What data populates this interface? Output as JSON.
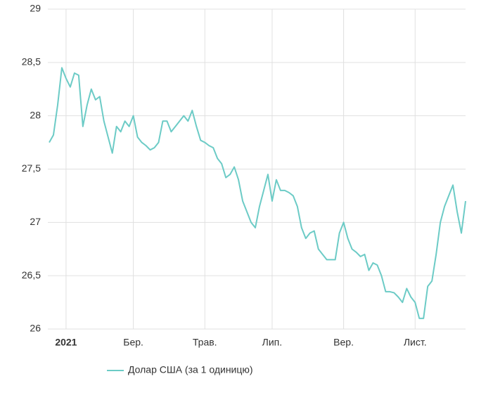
{
  "chart_data": {
    "type": "line",
    "categories": [
      null,
      null,
      null,
      null,
      "2021",
      null,
      null,
      null,
      null,
      null,
      null,
      null,
      null,
      null,
      null,
      null,
      null,
      null,
      null,
      null,
      "Бер.",
      null,
      null,
      null,
      null,
      null,
      null,
      null,
      null,
      null,
      null,
      null,
      null,
      null,
      null,
      null,
      null,
      "Трав.",
      null,
      null,
      null,
      null,
      null,
      null,
      null,
      null,
      null,
      null,
      null,
      null,
      null,
      null,
      null,
      "Лип.",
      null,
      null,
      null,
      null,
      null,
      null,
      null,
      null,
      null,
      null,
      null,
      null,
      null,
      null,
      null,
      null,
      "Вер.",
      null,
      null,
      null,
      null,
      null,
      null,
      null,
      null,
      null,
      null,
      null,
      null,
      null,
      null,
      null,
      null,
      "Лист.",
      null,
      null,
      null,
      null,
      null,
      null,
      null,
      null,
      null,
      null,
      null,
      null
    ],
    "series": [
      {
        "name": "Долар США (за 1 одиницю)",
        "color": "#6ccbc6",
        "values": [
          27.75,
          27.82,
          28.1,
          28.45,
          28.35,
          28.27,
          28.4,
          28.38,
          27.9,
          28.1,
          28.25,
          28.15,
          28.18,
          27.95,
          27.8,
          27.65,
          27.9,
          27.85,
          27.95,
          27.9,
          28.0,
          27.8,
          27.75,
          27.72,
          27.68,
          27.7,
          27.75,
          27.95,
          27.95,
          27.85,
          27.9,
          27.95,
          28.0,
          27.95,
          28.05,
          27.9,
          27.77,
          27.75,
          27.72,
          27.7,
          27.6,
          27.55,
          27.42,
          27.45,
          27.52,
          27.4,
          27.2,
          27.1,
          27.0,
          26.95,
          27.15,
          27.3,
          27.45,
          27.2,
          27.4,
          27.3,
          27.3,
          27.28,
          27.25,
          27.15,
          26.95,
          26.85,
          26.9,
          26.92,
          26.75,
          26.7,
          26.65,
          26.65,
          26.65,
          26.9,
          27.0,
          26.85,
          26.75,
          26.72,
          26.68,
          26.7,
          26.55,
          26.62,
          26.6,
          26.5,
          26.35,
          26.35,
          26.34,
          26.3,
          26.25,
          26.38,
          26.3,
          26.25,
          26.1,
          26.1,
          26.4,
          26.45,
          26.7,
          27.0,
          27.15,
          27.25,
          27.35,
          27.1,
          26.9,
          27.2
        ]
      }
    ],
    "ylim": [
      26,
      29
    ],
    "yticks": [
      26,
      {
        "value": 26.5,
        "label": "26,5"
      },
      27,
      {
        "value": 27.5,
        "label": "27,5"
      },
      28,
      {
        "value": 28.5,
        "label": "28,5"
      },
      29
    ],
    "grid": true
  }
}
